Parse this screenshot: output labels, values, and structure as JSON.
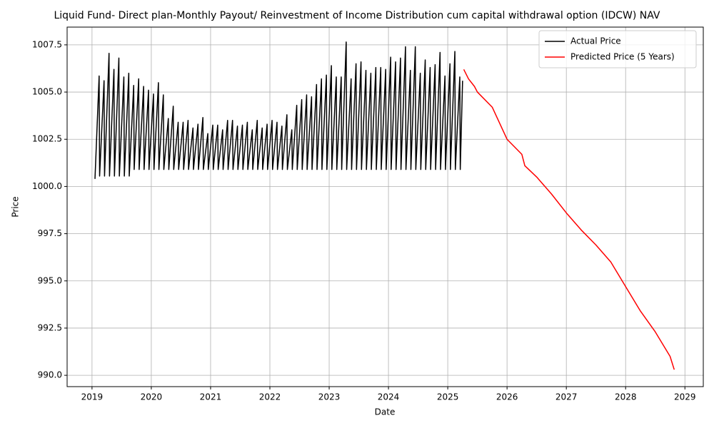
{
  "chart_data": {
    "type": "line",
    "title": "Liquid Fund- Direct plan-Monthly  Payout/ Reinvestment of Income Distribution cum capital withdrawal option (IDCW) NAV",
    "x_label": "Date",
    "y_label": "Price",
    "xlim": [
      2018.58,
      2029.31
    ],
    "ylim": [
      989.4,
      1008.44
    ],
    "xticks": [
      2019,
      2020,
      2021,
      2022,
      2023,
      2024,
      2025,
      2026,
      2027,
      2028,
      2029
    ],
    "yticks": [
      {
        "value": 990,
        "label": "990.0"
      },
      992.5,
      {
        "value": 995,
        "label": "995.0"
      },
      997.5,
      {
        "value": 1000,
        "label": "1000.0"
      },
      1002.5,
      {
        "value": 1005,
        "label": "1005.0"
      },
      1007.5
    ],
    "grid": true,
    "legend": "upper right",
    "series": [
      {
        "name": "Actual Price",
        "color": "#000000",
        "x": [
          2019.05,
          2019.12,
          2019.128,
          2019.203,
          2019.211,
          2019.287,
          2019.295,
          2019.37,
          2019.378,
          2019.453,
          2019.461,
          2019.537,
          2019.545,
          2019.62,
          2019.628,
          2019.703,
          2019.711,
          2019.787,
          2019.795,
          2019.87,
          2019.878,
          2019.953,
          2019.961,
          2020.037,
          2020.045,
          2020.12,
          2020.128,
          2020.203,
          2020.211,
          2020.287,
          2020.295,
          2020.37,
          2020.378,
          2020.453,
          2020.461,
          2020.537,
          2020.545,
          2020.62,
          2020.628,
          2020.703,
          2020.711,
          2020.787,
          2020.795,
          2020.87,
          2020.878,
          2020.953,
          2020.961,
          2021.037,
          2021.045,
          2021.12,
          2021.128,
          2021.203,
          2021.211,
          2021.287,
          2021.295,
          2021.37,
          2021.378,
          2021.453,
          2021.461,
          2021.537,
          2021.545,
          2021.62,
          2021.628,
          2021.703,
          2021.711,
          2021.787,
          2021.795,
          2021.87,
          2021.878,
          2021.953,
          2021.961,
          2022.037,
          2022.045,
          2022.12,
          2022.128,
          2022.203,
          2022.211,
          2022.287,
          2022.295,
          2022.37,
          2022.378,
          2022.453,
          2022.461,
          2022.537,
          2022.545,
          2022.62,
          2022.628,
          2022.703,
          2022.711,
          2022.787,
          2022.795,
          2022.87,
          2022.878,
          2022.953,
          2022.961,
          2023.037,
          2023.045,
          2023.12,
          2023.128,
          2023.203,
          2023.211,
          2023.287,
          2023.295,
          2023.37,
          2023.378,
          2023.453,
          2023.461,
          2023.537,
          2023.545,
          2023.62,
          2023.628,
          2023.703,
          2023.711,
          2023.787,
          2023.795,
          2023.87,
          2023.878,
          2023.953,
          2023.961,
          2024.037,
          2024.045,
          2024.12,
          2024.128,
          2024.203,
          2024.211,
          2024.287,
          2024.295,
          2024.37,
          2024.378,
          2024.453,
          2024.461,
          2024.537,
          2024.545,
          2024.62,
          2024.628,
          2024.703,
          2024.711,
          2024.787,
          2024.795,
          2024.87,
          2024.878,
          2024.953,
          2024.961,
          2025.037,
          2025.045,
          2025.12,
          2025.128,
          2025.203,
          2025.211,
          2025.25
        ],
        "values": [
          1000.4,
          1005.85,
          1000.55,
          1005.6,
          1000.55,
          1007.05,
          1000.55,
          1006.2,
          1000.55,
          1006.8,
          1000.55,
          1005.8,
          1000.55,
          1006.0,
          1000.55,
          1005.35,
          1000.9,
          1005.7,
          1000.9,
          1005.3,
          1000.9,
          1005.1,
          1000.9,
          1004.9,
          1000.9,
          1005.5,
          1000.9,
          1004.85,
          1000.9,
          1003.6,
          1000.9,
          1004.25,
          1000.9,
          1003.4,
          1000.9,
          1003.4,
          1000.9,
          1003.5,
          1000.9,
          1003.1,
          1000.9,
          1003.3,
          1000.9,
          1003.65,
          1000.9,
          1002.8,
          1000.9,
          1003.25,
          1000.9,
          1003.25,
          1000.9,
          1003.0,
          1000.9,
          1003.5,
          1000.9,
          1003.5,
          1000.9,
          1003.2,
          1000.9,
          1003.25,
          1000.9,
          1003.4,
          1000.9,
          1003.0,
          1000.9,
          1003.5,
          1000.9,
          1003.1,
          1000.9,
          1003.3,
          1000.9,
          1003.5,
          1000.9,
          1003.4,
          1000.9,
          1003.2,
          1000.9,
          1003.8,
          1000.9,
          1003.0,
          1000.9,
          1004.3,
          1000.9,
          1004.6,
          1000.9,
          1004.85,
          1000.9,
          1004.75,
          1000.9,
          1005.4,
          1000.9,
          1005.7,
          1000.9,
          1005.9,
          1000.9,
          1006.4,
          1000.9,
          1005.8,
          1000.9,
          1005.8,
          1000.9,
          1007.65,
          1000.9,
          1005.7,
          1000.9,
          1006.5,
          1000.9,
          1006.6,
          1000.9,
          1006.15,
          1000.9,
          1006.0,
          1000.9,
          1006.3,
          1000.9,
          1006.3,
          1000.9,
          1006.2,
          1000.9,
          1006.85,
          1000.9,
          1006.6,
          1000.9,
          1006.8,
          1000.9,
          1007.4,
          1000.9,
          1006.15,
          1000.9,
          1007.4,
          1000.9,
          1006.0,
          1000.9,
          1006.7,
          1000.9,
          1006.3,
          1000.9,
          1006.45,
          1000.9,
          1007.1,
          1000.9,
          1005.85,
          1000.9,
          1006.5,
          1000.9,
          1007.15,
          1000.9,
          1005.8,
          1000.9,
          1005.6
        ]
      },
      {
        "name": "Predicted Price (5 Years)",
        "color": "#ff0000",
        "x": [
          2025.27,
          2025.35,
          2025.45,
          2025.5,
          2025.75,
          2026.0,
          2026.25,
          2026.3,
          2026.5,
          2026.75,
          2027.0,
          2027.25,
          2027.5,
          2027.75,
          2028.0,
          2028.25,
          2028.5,
          2028.75,
          2028.82
        ],
        "values": [
          1006.2,
          1005.7,
          1005.3,
          1005.0,
          1004.2,
          1002.5,
          1001.7,
          1001.1,
          1000.5,
          999.6,
          998.6,
          997.7,
          996.9,
          996.0,
          994.7,
          993.4,
          992.3,
          991.0,
          990.3
        ]
      }
    ]
  }
}
